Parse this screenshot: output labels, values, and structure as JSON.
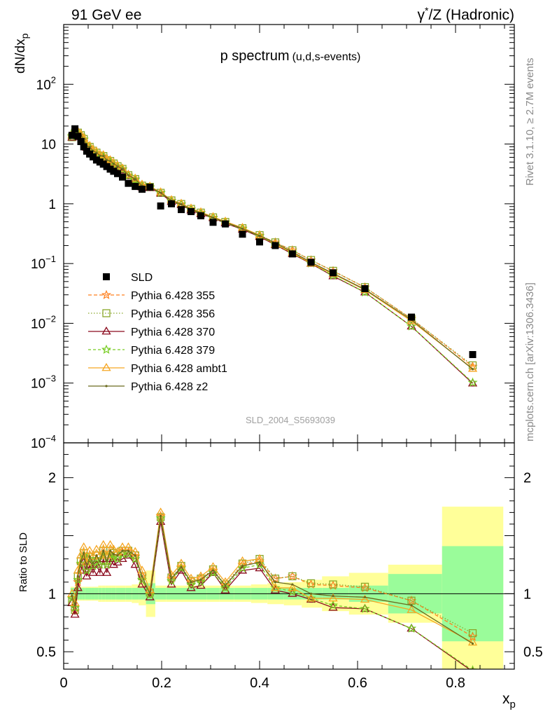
{
  "header": {
    "left": "91 GeV ee",
    "right_sym": "γ",
    "right_sup": "*",
    "right_rest": "/Z (Hadronic)"
  },
  "side": {
    "rivet": "Rivet 3.1.10, ≥ 2.7M events",
    "mcplots": "mcplots.cern.ch [arXiv:1306.3436]"
  },
  "chart_data": {
    "type": "line",
    "title_main": "p spectrum",
    "title_sub": "(u,d,s-events)",
    "analysis_label": "SLD_2004_S5693039",
    "ylabel_main": "dN/dx",
    "ylabel_main_sub": "p",
    "ylabel_ratio": "Ratio to SLD",
    "xlabel": "x",
    "xlabel_sub": "p",
    "xlim": [
      0,
      0.92
    ],
    "ylim_main": [
      0.0001,
      1000
    ],
    "ylim_ratio": [
      0.35,
      2.3
    ],
    "y_scale_main": "log",
    "legend_position": "left",
    "x_ticks": [
      "0",
      "0.2",
      "0.4",
      "0.6",
      "0.8"
    ],
    "y_ticks_main": [
      {
        "base": "10",
        "exp": "2"
      },
      {
        "base": "10",
        "exp": ""
      },
      {
        "base": "1",
        "exp": ""
      },
      {
        "base": "10",
        "exp": "−1"
      },
      {
        "base": "10",
        "exp": "−2"
      },
      {
        "base": "10",
        "exp": "−3"
      },
      {
        "base": "10",
        "exp": "−4"
      }
    ],
    "y_ticks_ratio": [
      "2",
      "1",
      "0.5"
    ],
    "x": [
      0.017,
      0.023,
      0.029,
      0.035,
      0.041,
      0.047,
      0.053,
      0.06,
      0.067,
      0.074,
      0.081,
      0.088,
      0.095,
      0.102,
      0.11,
      0.12,
      0.132,
      0.146,
      0.16,
      0.176,
      0.198,
      0.22,
      0.24,
      0.26,
      0.28,
      0.305,
      0.33,
      0.365,
      0.4,
      0.432,
      0.467,
      0.505,
      0.55,
      0.615,
      0.71,
      0.835
    ],
    "data": {
      "name": "SLD",
      "values": [
        14.0,
        18.0,
        13.5,
        11.0,
        9.0,
        7.6,
        6.8,
        6.1,
        5.4,
        5.0,
        4.6,
        4.2,
        3.8,
        3.5,
        3.2,
        2.8,
        2.2,
        1.95,
        1.75,
        1.9,
        0.92,
        1.0,
        0.8,
        0.74,
        0.63,
        0.49,
        0.46,
        0.31,
        0.23,
        0.2,
        0.145,
        0.105,
        0.07,
        0.038,
        0.0127,
        0.003
      ],
      "band_inner": [
        0.05,
        0.05,
        0.05,
        0.05,
        0.05,
        0.05,
        0.05,
        0.05,
        0.05,
        0.05,
        0.05,
        0.05,
        0.05,
        0.05,
        0.05,
        0.05,
        0.05,
        0.05,
        0.05,
        0.09,
        0.05,
        0.05,
        0.05,
        0.05,
        0.05,
        0.05,
        0.05,
        0.05,
        0.05,
        0.05,
        0.05,
        0.05,
        0.05,
        0.07,
        0.17,
        0.41
      ],
      "band_outer": [
        0.06,
        0.06,
        0.06,
        0.06,
        0.06,
        0.06,
        0.06,
        0.06,
        0.06,
        0.07,
        0.07,
        0.07,
        0.07,
        0.07,
        0.07,
        0.07,
        0.07,
        0.08,
        0.1,
        0.2,
        0.07,
        0.07,
        0.07,
        0.07,
        0.07,
        0.07,
        0.07,
        0.07,
        0.08,
        0.09,
        0.1,
        0.12,
        0.15,
        0.18,
        0.25,
        0.75
      ],
      "band_color_inner": "#9afc9a",
      "band_color_outer": "#ffff99"
    },
    "series": [
      {
        "name": "Pythia 6.428 355",
        "color": "#ff7f1e",
        "dash": "5,3",
        "marker": "star",
        "ratio": [
          0.96,
          0.85,
          1.1,
          1.25,
          1.32,
          1.2,
          1.3,
          1.24,
          1.3,
          1.25,
          1.35,
          1.25,
          1.35,
          1.32,
          1.32,
          1.36,
          1.36,
          1.32,
          1.15,
          1.0,
          1.67,
          1.13,
          1.23,
          1.1,
          1.13,
          1.2,
          1.07,
          1.25,
          1.28,
          1.13,
          1.15,
          1.08,
          1.07,
          1.05,
          0.94,
          0.63
        ]
      },
      {
        "name": "Pythia 6.428 356",
        "color": "#8aa82a",
        "dash": "1.5,2.5",
        "marker": "square",
        "ratio": [
          0.93,
          0.86,
          1.15,
          1.28,
          1.35,
          1.22,
          1.32,
          1.27,
          1.33,
          1.28,
          1.37,
          1.28,
          1.37,
          1.35,
          1.33,
          1.37,
          1.37,
          1.33,
          1.15,
          1.01,
          1.66,
          1.14,
          1.24,
          1.11,
          1.13,
          1.21,
          1.08,
          1.26,
          1.3,
          1.13,
          1.15,
          1.09,
          1.08,
          1.06,
          0.94,
          0.66
        ]
      },
      {
        "name": "Pythia 6.428 370",
        "color": "#8b0b1e",
        "dash": "",
        "marker": "triangle",
        "ratio": [
          0.92,
          0.82,
          1.05,
          1.2,
          1.27,
          1.15,
          1.25,
          1.18,
          1.25,
          1.18,
          1.3,
          1.18,
          1.3,
          1.25,
          1.27,
          1.3,
          1.33,
          1.25,
          1.08,
          0.97,
          1.62,
          1.08,
          1.2,
          1.05,
          1.07,
          1.18,
          1.03,
          1.2,
          1.22,
          1.03,
          1.0,
          0.95,
          0.88,
          0.87,
          0.7,
          0.33
        ]
      },
      {
        "name": "Pythia 6.428 379",
        "color": "#77cc22",
        "dash": "4,3",
        "marker": "star",
        "ratio": [
          0.96,
          0.88,
          1.12,
          1.26,
          1.33,
          1.2,
          1.3,
          1.24,
          1.3,
          1.25,
          1.34,
          1.25,
          1.34,
          1.31,
          1.3,
          1.34,
          1.34,
          1.3,
          1.12,
          0.99,
          1.65,
          1.11,
          1.22,
          1.08,
          1.1,
          1.18,
          1.05,
          1.22,
          1.25,
          1.05,
          1.02,
          0.96,
          0.9,
          0.87,
          0.7,
          0.34
        ]
      },
      {
        "name": "Pythia 6.428 ambt1",
        "color": "#f5a623",
        "dash": "",
        "marker": "triangle",
        "ratio": [
          1.0,
          0.92,
          1.2,
          1.33,
          1.4,
          1.27,
          1.37,
          1.32,
          1.38,
          1.33,
          1.42,
          1.33,
          1.42,
          1.38,
          1.36,
          1.4,
          1.4,
          1.36,
          1.2,
          1.03,
          1.7,
          1.16,
          1.26,
          1.13,
          1.15,
          1.23,
          1.1,
          1.28,
          1.3,
          1.05,
          1.05,
          0.96,
          0.96,
          0.95,
          0.86,
          0.58
        ]
      },
      {
        "name": "Pythia 6.428 z2",
        "color": "#6b6b1e",
        "dash": "",
        "marker": "dot",
        "ratio": [
          0.98,
          0.9,
          1.15,
          1.28,
          1.35,
          1.22,
          1.32,
          1.26,
          1.33,
          1.28,
          1.37,
          1.28,
          1.37,
          1.34,
          1.33,
          1.37,
          1.37,
          1.33,
          1.15,
          1.0,
          1.67,
          1.13,
          1.23,
          1.1,
          1.12,
          1.2,
          1.07,
          1.24,
          1.27,
          1.1,
          1.08,
          1.0,
          0.98,
          0.97,
          0.9,
          0.57
        ]
      }
    ]
  }
}
